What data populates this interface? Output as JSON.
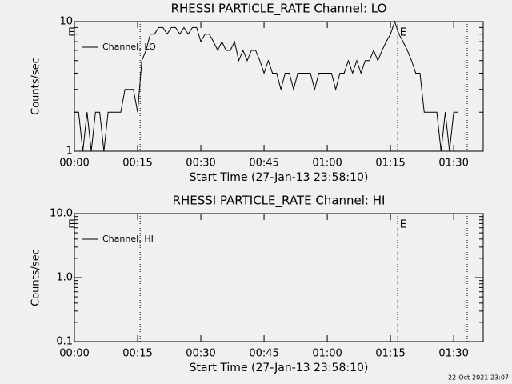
{
  "chart_data": [
    {
      "type": "line",
      "title": "RHESSI PARTICLE_RATE Channel: LO",
      "x_label": "Start Time (27-Jan-13 23:58:10)",
      "y_label": "Counts/sec",
      "log_scale": true,
      "xlim": [
        0,
        97
      ],
      "ylim": [
        1,
        10
      ],
      "xticks": [
        {
          "value": 0,
          "label": "00:00"
        },
        {
          "value": 15,
          "label": "00:15"
        },
        {
          "value": 30,
          "label": "00:30"
        },
        {
          "value": 45,
          "label": "00:45"
        },
        {
          "value": 60,
          "label": "01:00"
        },
        {
          "value": 75,
          "label": "01:15"
        },
        {
          "value": 90,
          "label": "01:30"
        }
      ],
      "yticks": [
        1,
        10
      ],
      "event_lines": [
        15.6,
        76.7,
        93.2
      ],
      "event_flags": [
        {
          "x": -1.5,
          "label": "E"
        },
        {
          "x": 77.2,
          "label": "E"
        }
      ],
      "x": [
        0,
        1,
        2,
        3,
        4,
        5,
        6,
        7,
        8,
        9,
        10,
        11,
        12,
        13,
        14,
        15,
        16,
        17,
        18,
        19,
        20,
        21,
        22,
        23,
        24,
        25,
        26,
        27,
        28,
        29,
        30,
        31,
        32,
        33,
        34,
        35,
        36,
        37,
        38,
        39,
        40,
        41,
        42,
        43,
        44,
        45,
        46,
        47,
        48,
        49,
        50,
        51,
        52,
        53,
        54,
        55,
        56,
        57,
        58,
        59,
        60,
        61,
        62,
        63,
        64,
        65,
        66,
        67,
        68,
        69,
        70,
        71,
        72,
        73,
        74,
        75,
        76,
        77,
        78,
        79,
        80,
        81,
        82,
        83,
        84,
        85,
        86,
        87,
        88,
        89,
        90,
        91
      ],
      "series": [
        {
          "name": "Channel: LO",
          "color": "#000000",
          "values": [
            2,
            2,
            1,
            2,
            1,
            2,
            2,
            1,
            2,
            2,
            2,
            2,
            3,
            3,
            3,
            2,
            5,
            6,
            8,
            8,
            9,
            9,
            8,
            9,
            9,
            8,
            9,
            8,
            9,
            9,
            7,
            8,
            8,
            7,
            6,
            7,
            6,
            6,
            7,
            5,
            6,
            5,
            6,
            6,
            5,
            4,
            5,
            4,
            4,
            3,
            4,
            4,
            3,
            4,
            4,
            4,
            4,
            3,
            4,
            4,
            4,
            4,
            3,
            4,
            4,
            5,
            4,
            5,
            4,
            5,
            5,
            6,
            5,
            6,
            7,
            8,
            10,
            8,
            7,
            6,
            5,
            4,
            4,
            2,
            2,
            2,
            2,
            1,
            2,
            1,
            2,
            2
          ]
        }
      ]
    },
    {
      "type": "line",
      "title": "RHESSI PARTICLE_RATE Channel: HI",
      "x_label": "Start Time (27-Jan-13 23:58:10)",
      "y_label": "Counts/sec",
      "log_scale": true,
      "xlim": [
        0,
        97
      ],
      "ylim": [
        0.1,
        10
      ],
      "xticks": [
        {
          "value": 0,
          "label": "00:00"
        },
        {
          "value": 15,
          "label": "00:15"
        },
        {
          "value": 30,
          "label": "00:30"
        },
        {
          "value": 45,
          "label": "00:45"
        },
        {
          "value": 60,
          "label": "01:00"
        },
        {
          "value": 75,
          "label": "01:15"
        },
        {
          "value": 90,
          "label": "01:30"
        }
      ],
      "yticks": [
        0.1,
        {
          "value": 1,
          "label": "1.0"
        },
        {
          "value": 10,
          "label": "10.0"
        }
      ],
      "event_lines": [
        15.6,
        76.7,
        93.2
      ],
      "event_flags": [
        {
          "x": -1.5,
          "label": "E"
        },
        {
          "x": 77.2,
          "label": "E"
        }
      ],
      "x": [],
      "series": [
        {
          "name": "Channel: HI",
          "color": "#000000",
          "values": []
        }
      ]
    }
  ],
  "footer": "22-Oct-2021 23:07"
}
